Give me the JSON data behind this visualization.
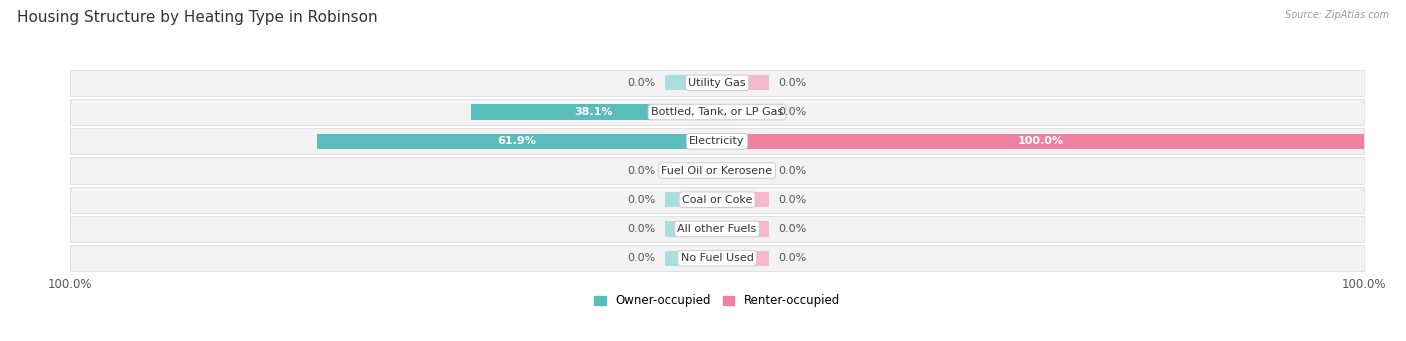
{
  "title": "Housing Structure by Heating Type in Robinson",
  "source": "Source: ZipAtlas.com",
  "categories": [
    "Utility Gas",
    "Bottled, Tank, or LP Gas",
    "Electricity",
    "Fuel Oil or Kerosene",
    "Coal or Coke",
    "All other Fuels",
    "No Fuel Used"
  ],
  "owner_values": [
    0.0,
    38.1,
    61.9,
    0.0,
    0.0,
    0.0,
    0.0
  ],
  "renter_values": [
    0.0,
    0.0,
    100.0,
    0.0,
    0.0,
    0.0,
    0.0
  ],
  "owner_color": "#5bbcbd",
  "owner_color_light": "#a8dede",
  "renter_color": "#f080a0",
  "renter_color_light": "#f5b8cc",
  "owner_label": "Owner-occupied",
  "renter_label": "Renter-occupied",
  "bar_height": 0.52,
  "row_bg_color": "#f2f2f2",
  "row_border_color": "#d8d8d8",
  "title_color": "#333333",
  "value_color": "#555555",
  "axis_label_fontsize": 8.5,
  "category_fontsize": 8,
  "value_fontsize": 8,
  "title_fontsize": 11,
  "max_value": 100.0,
  "stub_size": 8.0
}
